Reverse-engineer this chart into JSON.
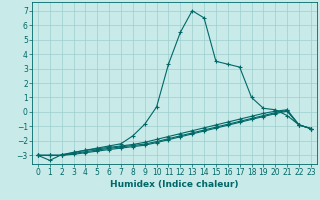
{
  "xlabel": "Humidex (Indice chaleur)",
  "bg_color": "#c8eae8",
  "line_color": "#006868",
  "grid_color": "#9ecece",
  "xlim": [
    -0.5,
    23.5
  ],
  "ylim": [
    -3.6,
    7.6
  ],
  "xticks": [
    0,
    1,
    2,
    3,
    4,
    5,
    6,
    7,
    8,
    9,
    10,
    11,
    12,
    13,
    14,
    15,
    16,
    17,
    18,
    19,
    20,
    21,
    22,
    23
  ],
  "yticks": [
    -3,
    -2,
    -1,
    0,
    1,
    2,
    3,
    4,
    5,
    6,
    7
  ],
  "curve1_x": [
    0,
    1,
    2,
    3,
    4,
    5,
    6,
    7,
    8,
    9,
    10,
    11,
    12,
    13,
    14,
    15,
    16,
    17,
    18,
    19,
    20,
    21,
    22,
    23
  ],
  "curve1_y": [
    -3.0,
    -3.35,
    -2.95,
    -2.8,
    -2.65,
    -2.5,
    -2.35,
    -2.2,
    -1.65,
    -0.85,
    0.35,
    3.3,
    5.5,
    7.0,
    6.5,
    3.5,
    3.3,
    3.1,
    1.0,
    0.25,
    0.15,
    -0.25,
    -0.9,
    -1.15
  ],
  "curve2_x": [
    0,
    1,
    2,
    3,
    4,
    5,
    6,
    7,
    8,
    9,
    10,
    11,
    12,
    13,
    14,
    15,
    16,
    17,
    18,
    19,
    20,
    21,
    22,
    23
  ],
  "curve2_y": [
    -3.0,
    -3.0,
    -3.0,
    -2.8,
    -2.65,
    -2.55,
    -2.45,
    -2.35,
    -2.25,
    -2.1,
    -1.9,
    -1.7,
    -1.5,
    -1.3,
    -1.1,
    -0.9,
    -0.7,
    -0.5,
    -0.3,
    -0.1,
    0.05,
    0.15,
    -0.9,
    -1.15
  ],
  "curve3_x": [
    0,
    1,
    2,
    3,
    4,
    5,
    6,
    7,
    8,
    9,
    10,
    11,
    12,
    13,
    14,
    15,
    16,
    17,
    18,
    19,
    20,
    21,
    22,
    23
  ],
  "curve3_y": [
    -3.0,
    -3.0,
    -3.0,
    -2.87,
    -2.75,
    -2.63,
    -2.52,
    -2.42,
    -2.32,
    -2.22,
    -2.05,
    -1.85,
    -1.65,
    -1.45,
    -1.25,
    -1.05,
    -0.85,
    -0.65,
    -0.45,
    -0.25,
    -0.05,
    0.1,
    -0.9,
    -1.15
  ],
  "curve4_x": [
    0,
    1,
    2,
    3,
    4,
    5,
    6,
    7,
    8,
    9,
    10,
    11,
    12,
    13,
    14,
    15,
    16,
    17,
    18,
    19,
    20,
    21,
    22,
    23
  ],
  "curve4_y": [
    -3.0,
    -3.0,
    -3.0,
    -2.93,
    -2.82,
    -2.71,
    -2.6,
    -2.5,
    -2.4,
    -2.3,
    -2.12,
    -1.92,
    -1.72,
    -1.52,
    -1.32,
    -1.12,
    -0.92,
    -0.72,
    -0.52,
    -0.32,
    -0.12,
    0.05,
    -0.9,
    -1.15
  ],
  "tick_fontsize": 5.5,
  "xlabel_fontsize": 6.5,
  "linewidth": 0.8,
  "markersize": 3.0
}
